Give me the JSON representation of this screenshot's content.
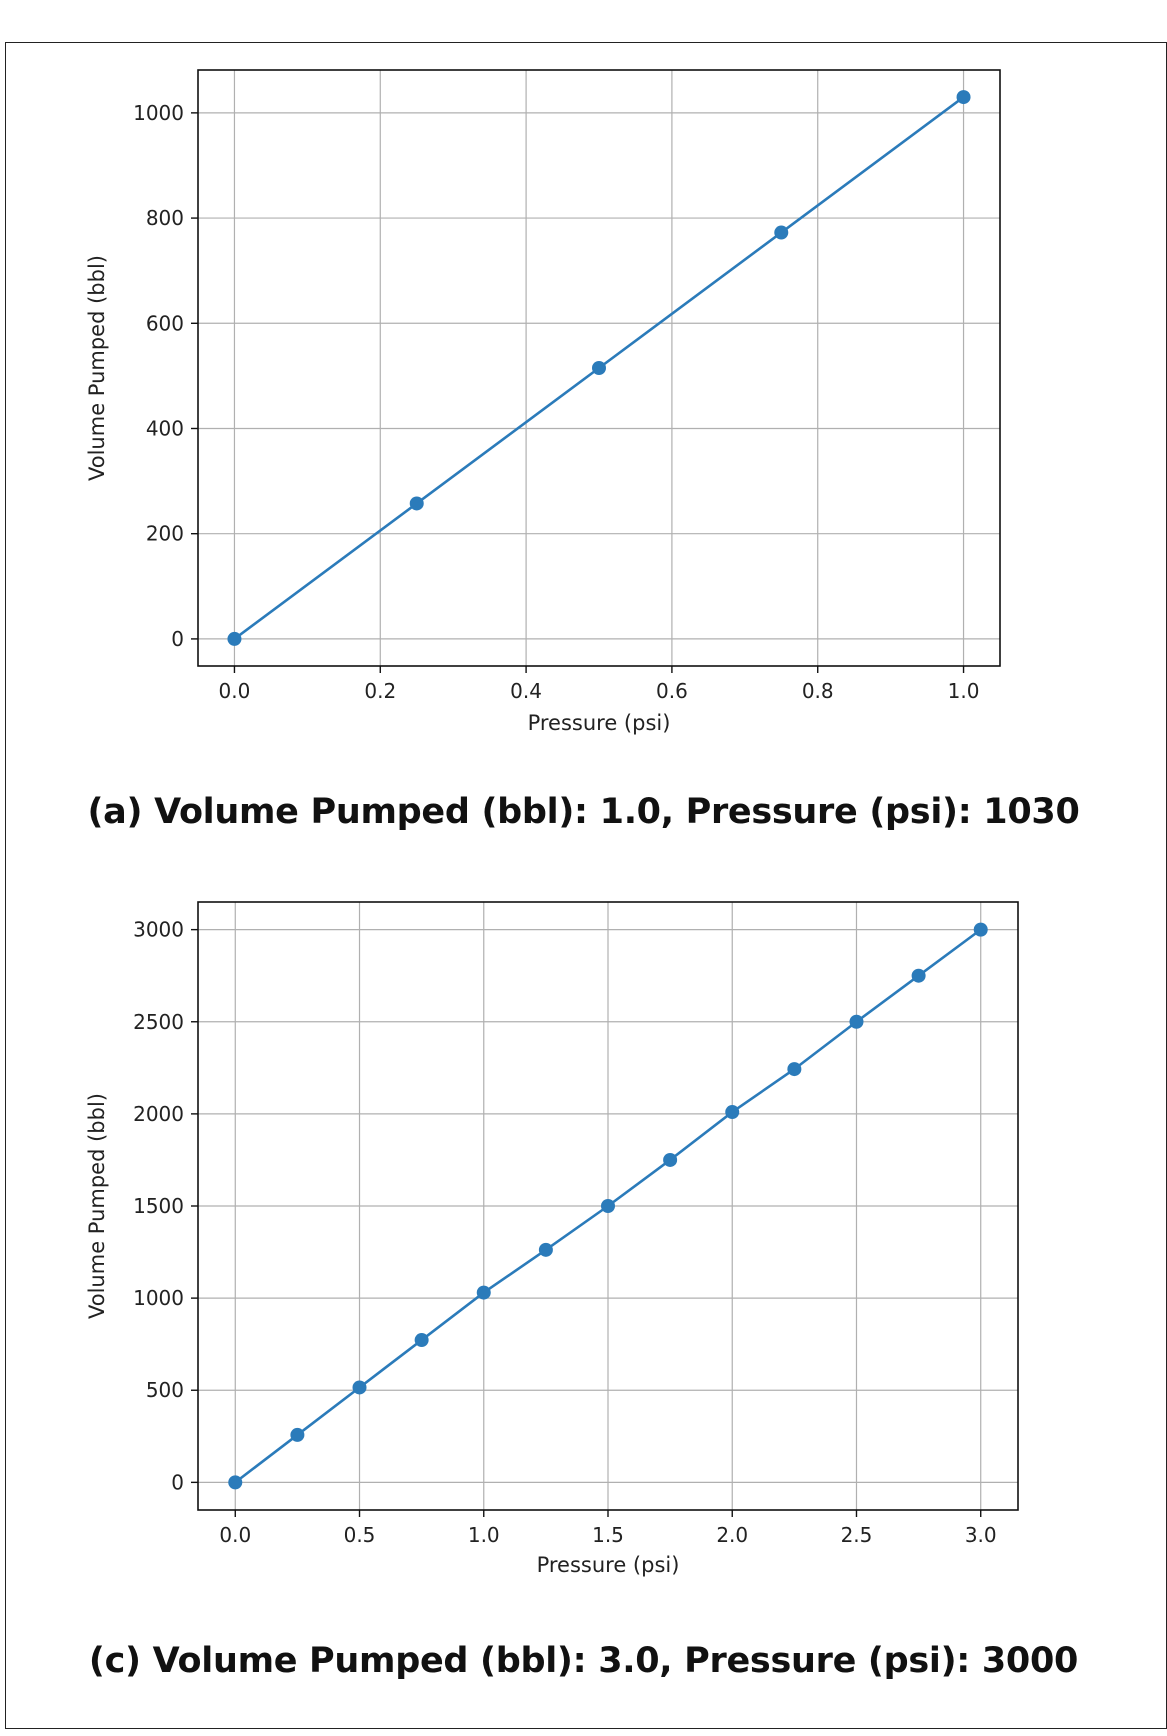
{
  "chart_data": [
    {
      "type": "line",
      "caption": "(a) Volume Pumped (bbl): 1.0, Pressure (psi): 1030",
      "xlabel": "Pressure (psi)",
      "ylabel": "Volume Pumped (bbl)",
      "xlim": [
        -0.05,
        1.05
      ],
      "ylim": [
        -51.5,
        1081.5
      ],
      "xticks": [
        0.0,
        0.2,
        0.4,
        0.6,
        0.8,
        1.0
      ],
      "xtick_labels": [
        "0.0",
        "0.2",
        "0.4",
        "0.6",
        "0.8",
        "1.0"
      ],
      "yticks": [
        0,
        200,
        400,
        600,
        800,
        1000
      ],
      "ytick_labels": [
        "0",
        "200",
        "400",
        "600",
        "800",
        "1000"
      ],
      "grid": true,
      "color": "#2b7bba",
      "series": [
        {
          "x": [
            0.0,
            0.25,
            0.5,
            0.75,
            1.0
          ],
          "y": [
            0,
            257.5,
            515,
            772.5,
            1030
          ]
        }
      ]
    },
    {
      "type": "line",
      "caption": "(c) Volume Pumped (bbl): 3.0, Pressure (psi): 3000",
      "xlabel": "Pressure (psi)",
      "ylabel": "Volume Pumped (bbl)",
      "xlim": [
        -0.15,
        3.15
      ],
      "ylim": [
        -150,
        3150
      ],
      "xticks": [
        0.0,
        0.5,
        1.0,
        1.5,
        2.0,
        2.5,
        3.0
      ],
      "xtick_labels": [
        "0.0",
        "0.5",
        "1.0",
        "1.5",
        "2.0",
        "2.5",
        "3.0"
      ],
      "yticks": [
        0,
        500,
        1000,
        1500,
        2000,
        2500,
        3000
      ],
      "ytick_labels": [
        "0",
        "500",
        "1000",
        "1500",
        "2000",
        "2500",
        "3000"
      ],
      "grid": true,
      "color": "#2b7bba",
      "series": [
        {
          "x": [
            0.0,
            0.25,
            0.5,
            0.75,
            1.0,
            1.25,
            1.5,
            1.75,
            2.0,
            2.25,
            2.5,
            2.75,
            3.0
          ],
          "y": [
            0,
            257.5,
            515,
            772.5,
            1030,
            1262,
            1500,
            1750,
            2010,
            2243,
            2500,
            2750,
            3000
          ]
        }
      ]
    }
  ]
}
